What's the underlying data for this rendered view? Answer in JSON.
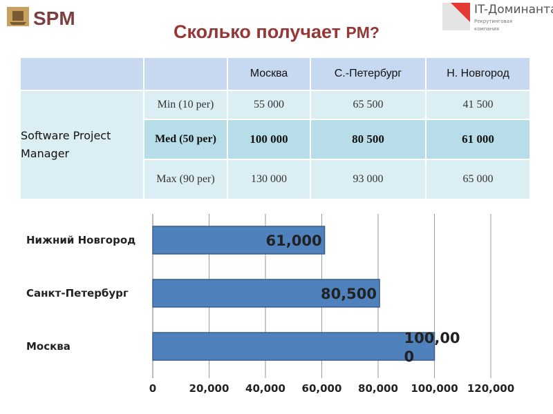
{
  "logos": {
    "left": "SPM",
    "right_title": "IT-Доминанта",
    "right_sub1": "Рекрутинговая",
    "right_sub2": "компания"
  },
  "title": {
    "main": "Сколько получает ",
    "pm": "PM?"
  },
  "table": {
    "headers": [
      "",
      "",
      "Москва",
      "С.-Петербург",
      "Н. Новгород"
    ],
    "role": "Software Project Manager",
    "rows": [
      {
        "label": "Min (10 per)",
        "values": [
          "55 000",
          "65 500",
          "41 500"
        ]
      },
      {
        "label": "Med (50 per)",
        "values": [
          "100 000",
          "80 500",
          "61 000"
        ]
      },
      {
        "label": "Max (90 per)",
        "values": [
          "130 000",
          "93 000",
          "65 000"
        ]
      }
    ]
  },
  "chart_data": {
    "type": "bar",
    "orientation": "horizontal",
    "categories": [
      "Нижний Новгород",
      "Санкт-Петербург",
      "Москва"
    ],
    "values": [
      61000,
      80500,
      100000
    ],
    "data_labels": [
      "61,000",
      "80,500",
      "100,00\n0"
    ],
    "xlim": [
      0,
      120000
    ],
    "xticks": [
      "0",
      "20,000",
      "40,000",
      "60,000",
      "80,000",
      "100,000",
      "120,000"
    ],
    "grid": true,
    "bar_color": "#4F81BD"
  }
}
